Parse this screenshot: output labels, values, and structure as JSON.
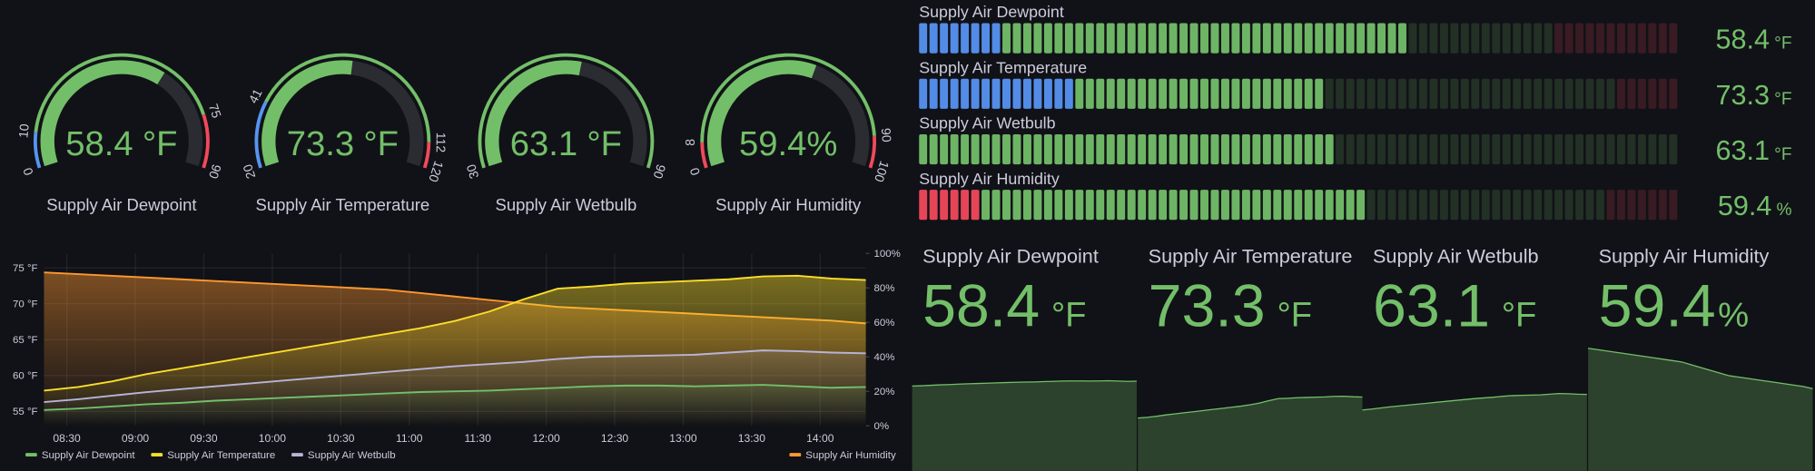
{
  "gauges": [
    {
      "title": "Supply Air Dewpoint",
      "value": 58.4,
      "unit": "°F",
      "min": 0,
      "max": 90,
      "base_color": "#5794f2",
      "thresholds": [
        {
          "value": 10,
          "color": "#73bf69"
        },
        {
          "value": 75,
          "color": "#f2495c"
        }
      ]
    },
    {
      "title": "Supply Air Temperature",
      "value": 73.3,
      "unit": "°F",
      "min": 20,
      "max": 120,
      "base_color": "#5794f2",
      "thresholds": [
        {
          "value": 41,
          "color": "#73bf69"
        },
        {
          "value": 112,
          "color": "#f2495c"
        }
      ]
    },
    {
      "title": "Supply Air Wetbulb",
      "value": 63.1,
      "unit": "°F",
      "min": 30,
      "max": 90,
      "base_color": "#73bf69",
      "thresholds": []
    },
    {
      "title": "Supply Air Humidity",
      "value": 59.4,
      "unit": "%",
      "min": 0,
      "max": 100,
      "base_color": "#f2495c",
      "thresholds": [
        {
          "value": 8,
          "color": "#73bf69"
        },
        {
          "value": 90,
          "color": "#f2495c"
        }
      ]
    }
  ],
  "timeseries": {
    "type": "line",
    "x": [
      "08:20",
      "08:35",
      "08:50",
      "09:05",
      "09:20",
      "09:35",
      "09:50",
      "10:05",
      "10:20",
      "10:35",
      "10:50",
      "11:05",
      "11:20",
      "11:35",
      "11:50",
      "12:05",
      "12:20",
      "12:35",
      "12:50",
      "13:05",
      "13:20",
      "13:35",
      "13:50",
      "14:05",
      "14:20"
    ],
    "xlim": [
      "08:20",
      "14:20"
    ],
    "xticks": [
      "08:30",
      "09:00",
      "09:30",
      "10:00",
      "10:30",
      "11:00",
      "11:30",
      "12:00",
      "12:30",
      "13:00",
      "13:30",
      "14:00"
    ],
    "ylim": [
      53,
      77
    ],
    "yticks": [
      {
        "value": 55,
        "label": "55 °F"
      },
      {
        "value": 60,
        "label": "60 °F"
      },
      {
        "value": 65,
        "label": "65 °F"
      },
      {
        "value": 70,
        "label": "70 °F"
      },
      {
        "value": 75,
        "label": "75 °F"
      }
    ],
    "y2lim": [
      0,
      100
    ],
    "y2ticks": [
      {
        "value": 0,
        "label": "0%"
      },
      {
        "value": 20,
        "label": "20%"
      },
      {
        "value": 40,
        "label": "40%"
      },
      {
        "value": 60,
        "label": "60%"
      },
      {
        "value": 80,
        "label": "80%"
      },
      {
        "value": 100,
        "label": "100%"
      }
    ],
    "grid": true,
    "series": [
      {
        "name": "Supply Air Dewpoint",
        "color": "#73bf69",
        "values": [
          55.2,
          55.4,
          55.7,
          56.0,
          56.2,
          56.5,
          56.7,
          56.9,
          57.1,
          57.3,
          57.5,
          57.7,
          57.8,
          57.9,
          58.1,
          58.3,
          58.5,
          58.6,
          58.6,
          58.5,
          58.6,
          58.7,
          58.5,
          58.3,
          58.4
        ]
      },
      {
        "name": "Supply Air Temperature",
        "color": "#fade2a",
        "values": [
          57.9,
          58.4,
          59.2,
          60.2,
          61.0,
          61.8,
          62.6,
          63.4,
          64.2,
          65.0,
          65.8,
          66.6,
          67.6,
          68.9,
          70.6,
          72.1,
          72.4,
          72.8,
          73.0,
          73.2,
          73.4,
          73.8,
          73.9,
          73.5,
          73.3
        ]
      },
      {
        "name": "Supply Air Wetbulb",
        "color": "#b8b4d8",
        "values": [
          56.3,
          56.7,
          57.2,
          57.7,
          58.1,
          58.5,
          58.9,
          59.3,
          59.7,
          60.1,
          60.5,
          60.9,
          61.3,
          61.6,
          61.9,
          62.3,
          62.6,
          62.7,
          62.8,
          62.9,
          63.2,
          63.5,
          63.4,
          63.2,
          63.1
        ]
      },
      {
        "name": "Supply Air Humidity",
        "color": "#ff9830",
        "axis": "y2",
        "values": [
          89,
          88,
          87,
          86,
          85,
          84,
          83,
          82,
          81,
          80,
          79,
          77,
          75,
          73,
          71,
          69,
          68,
          67,
          66,
          65,
          64,
          63,
          62,
          61,
          59.4
        ]
      }
    ]
  }
}
